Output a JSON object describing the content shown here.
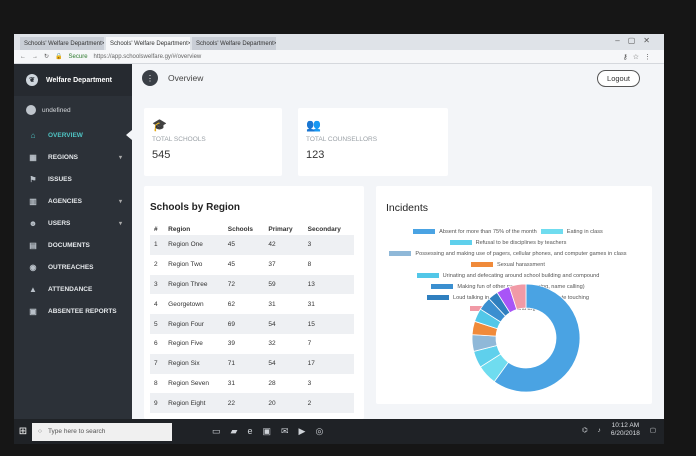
{
  "browser": {
    "tabs": [
      {
        "label": "Schools' Welfare Department",
        "close": "×"
      },
      {
        "label": "Schools' Welfare Department",
        "close": "×"
      },
      {
        "label": "Schools' Welfare Department",
        "close": "×"
      }
    ],
    "secure_label": "Secure",
    "url": "https://app.schoolswelfare.gy/#/overview"
  },
  "sidebar": {
    "brand": "Welfare Department",
    "user": "undefined",
    "items": [
      {
        "label": "OVERVIEW",
        "icon": "home-icon",
        "glyph": "⌂",
        "active": true
      },
      {
        "label": "REGIONS",
        "icon": "map-icon",
        "glyph": "▦",
        "caret": "▾"
      },
      {
        "label": "ISSUES",
        "icon": "flag-icon",
        "glyph": "⚑"
      },
      {
        "label": "AGENCIES",
        "icon": "building-icon",
        "glyph": "▥",
        "caret": "▾"
      },
      {
        "label": "USERS",
        "icon": "users-icon",
        "glyph": "☻",
        "caret": "▾"
      },
      {
        "label": "DOCUMENTS",
        "icon": "document-icon",
        "glyph": "▤"
      },
      {
        "label": "OUTREACHES",
        "icon": "outreach-icon",
        "glyph": "◉"
      },
      {
        "label": "ATTENDANCE",
        "icon": "attendance-icon",
        "glyph": "▲"
      },
      {
        "label": "ABSENTEE REPORTS",
        "icon": "calendar-icon",
        "glyph": "▣"
      }
    ]
  },
  "header": {
    "title": "Overview",
    "logout": "Logout"
  },
  "stats": [
    {
      "label": "TOTAL SCHOOLS",
      "value": "545",
      "icon": "graduation-cap-icon",
      "glyph": "🎓"
    },
    {
      "label": "TOTAL COUNSELLORS",
      "value": "123",
      "icon": "users-icon",
      "glyph": "👥"
    }
  ],
  "schools": {
    "title": "Schools by Region",
    "headers": [
      "#",
      "Region",
      "Schools",
      "Primary",
      "Secondary"
    ],
    "rows": [
      [
        "1",
        "Region One",
        "45",
        "42",
        "3"
      ],
      [
        "2",
        "Region Two",
        "45",
        "37",
        "8"
      ],
      [
        "3",
        "Region Three",
        "72",
        "59",
        "13"
      ],
      [
        "4",
        "Georgetown",
        "62",
        "31",
        "31"
      ],
      [
        "5",
        "Region Four",
        "69",
        "54",
        "15"
      ],
      [
        "6",
        "Region Five",
        "39",
        "32",
        "7"
      ],
      [
        "7",
        "Region Six",
        "71",
        "54",
        "17"
      ],
      [
        "8",
        "Region Seven",
        "31",
        "28",
        "3"
      ],
      [
        "9",
        "Region Eight",
        "22",
        "20",
        "2"
      ]
    ]
  },
  "chart_data": {
    "type": "pie",
    "title": "Incidents",
    "legend": "top",
    "labels": [
      "Absent for more than 75% of the month",
      "Eating in class",
      "Refusal to be disciplines by teachers",
      "Possessing and making use of pagers, cellular phones, and computer games in class",
      "Sexual harassment",
      "Urinating and defecating around school building and compound",
      "Making fun of other persons (teasing, name calling)",
      "Loud talking in class",
      "Inappropriate touching",
      "Cursing and arguing"
    ],
    "values": [
      60,
      6,
      5,
      5,
      4,
      4,
      4,
      3,
      4,
      5
    ],
    "colors": [
      "#4aa3e3",
      "#6fdcef",
      "#5fd0ec",
      "#8fb8d8",
      "#f08a3a",
      "#52c7e8",
      "#3b8fd0",
      "#2f7fbf",
      "#a855f7",
      "#f19aa6"
    ]
  },
  "taskbar": {
    "search_placeholder": "Type here to search",
    "time": "10:12 AM",
    "date": "6/20/2018"
  }
}
